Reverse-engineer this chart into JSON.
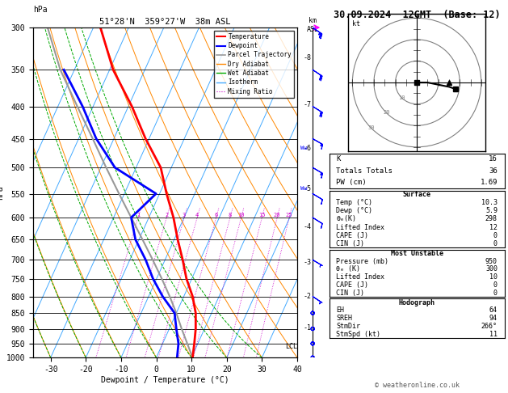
{
  "title_left": "51°28'N  359°27'W  38m ASL",
  "title_right": "30.09.2024  12GMT  (Base: 12)",
  "xlabel": "Dewpoint / Temperature (°C)",
  "ylabel_left": "hPa",
  "background_color": "#ffffff",
  "plot_bg": "#ffffff",
  "temp_xlim": [
    -35,
    40
  ],
  "temp_xticks": [
    -30,
    -20,
    -10,
    0,
    10,
    20,
    30,
    40
  ],
  "pressure_levels": [
    300,
    350,
    400,
    450,
    500,
    550,
    600,
    650,
    700,
    750,
    800,
    850,
    900,
    950,
    1000
  ],
  "temperature_data": {
    "pressure": [
      1000,
      950,
      900,
      850,
      800,
      750,
      700,
      650,
      600,
      550,
      500,
      450,
      400,
      350,
      300
    ],
    "temp": [
      10.3,
      9.0,
      7.5,
      5.5,
      2.5,
      -1.5,
      -5.0,
      -9.0,
      -13.0,
      -18.0,
      -23.0,
      -31.0,
      -39.0,
      -49.0,
      -58.0
    ],
    "color": "#ff0000",
    "linewidth": 2.0
  },
  "dewpoint_data": {
    "pressure": [
      1000,
      950,
      900,
      850,
      800,
      750,
      700,
      650,
      600,
      550,
      500,
      450,
      400,
      350
    ],
    "dewp": [
      5.9,
      4.5,
      2.0,
      -0.5,
      -6.0,
      -11.0,
      -15.5,
      -21.0,
      -25.0,
      -21.0,
      -36.0,
      -45.0,
      -53.0,
      -63.0
    ],
    "color": "#0000ff",
    "linewidth": 2.0
  },
  "parcel_data": {
    "pressure": [
      1000,
      950,
      900,
      850,
      800,
      750,
      700,
      650,
      600,
      550,
      500,
      450,
      400,
      350,
      300
    ],
    "temp": [
      10.3,
      7.0,
      3.5,
      0.0,
      -4.0,
      -8.5,
      -13.5,
      -19.0,
      -25.0,
      -31.5,
      -38.5,
      -46.0,
      -54.5,
      -64.0,
      -73.0
    ],
    "color": "#999999",
    "linewidth": 1.5
  },
  "isotherm_color": "#44aaff",
  "dry_adiabat_color": "#ff8800",
  "wet_adiabat_color": "#00aa00",
  "mixing_ratio_color": "#cc00cc",
  "mixing_ratio_values": [
    1,
    2,
    3,
    4,
    6,
    8,
    10,
    15,
    20,
    25
  ],
  "skew_factor": 35.0,
  "km_ticks": {
    "values": [
      1,
      2,
      3,
      4,
      5,
      6,
      7,
      8
    ],
    "pressures": [
      898,
      800,
      707,
      620,
      540,
      466,
      397,
      335
    ]
  },
  "lcl_pressure": 960,
  "lcl_label": "LCL",
  "info_box": {
    "K": 16,
    "Totals_Totals": 36,
    "PW_cm": 1.69,
    "Surface_Temp": 10.3,
    "Surface_Dewp": 5.9,
    "Surface_ThetaE": 298,
    "Surface_LiftedIndex": 12,
    "Surface_CAPE": 0,
    "Surface_CIN": 0,
    "MU_Pressure": 950,
    "MU_ThetaE": 300,
    "MU_LiftedIndex": 10,
    "MU_CAPE": 0,
    "MU_CIN": 0,
    "Hodo_EH": 64,
    "Hodo_SREH": 94,
    "Hodo_StmDir": "266°",
    "Hodo_StmSpd": 11
  },
  "copyright": "© weatheronline.co.uk",
  "wind_profile": {
    "pressures": [
      300,
      350,
      400,
      450,
      500,
      550,
      600,
      700,
      800,
      850,
      900,
      950,
      1000
    ],
    "u": [
      -20,
      -18,
      -16,
      -14,
      -12,
      -10,
      -8,
      -5,
      -3,
      -2,
      -2,
      -2,
      -1
    ],
    "v": [
      14,
      12,
      10,
      8,
      7,
      6,
      5,
      3,
      2,
      1,
      0,
      0,
      0
    ]
  }
}
